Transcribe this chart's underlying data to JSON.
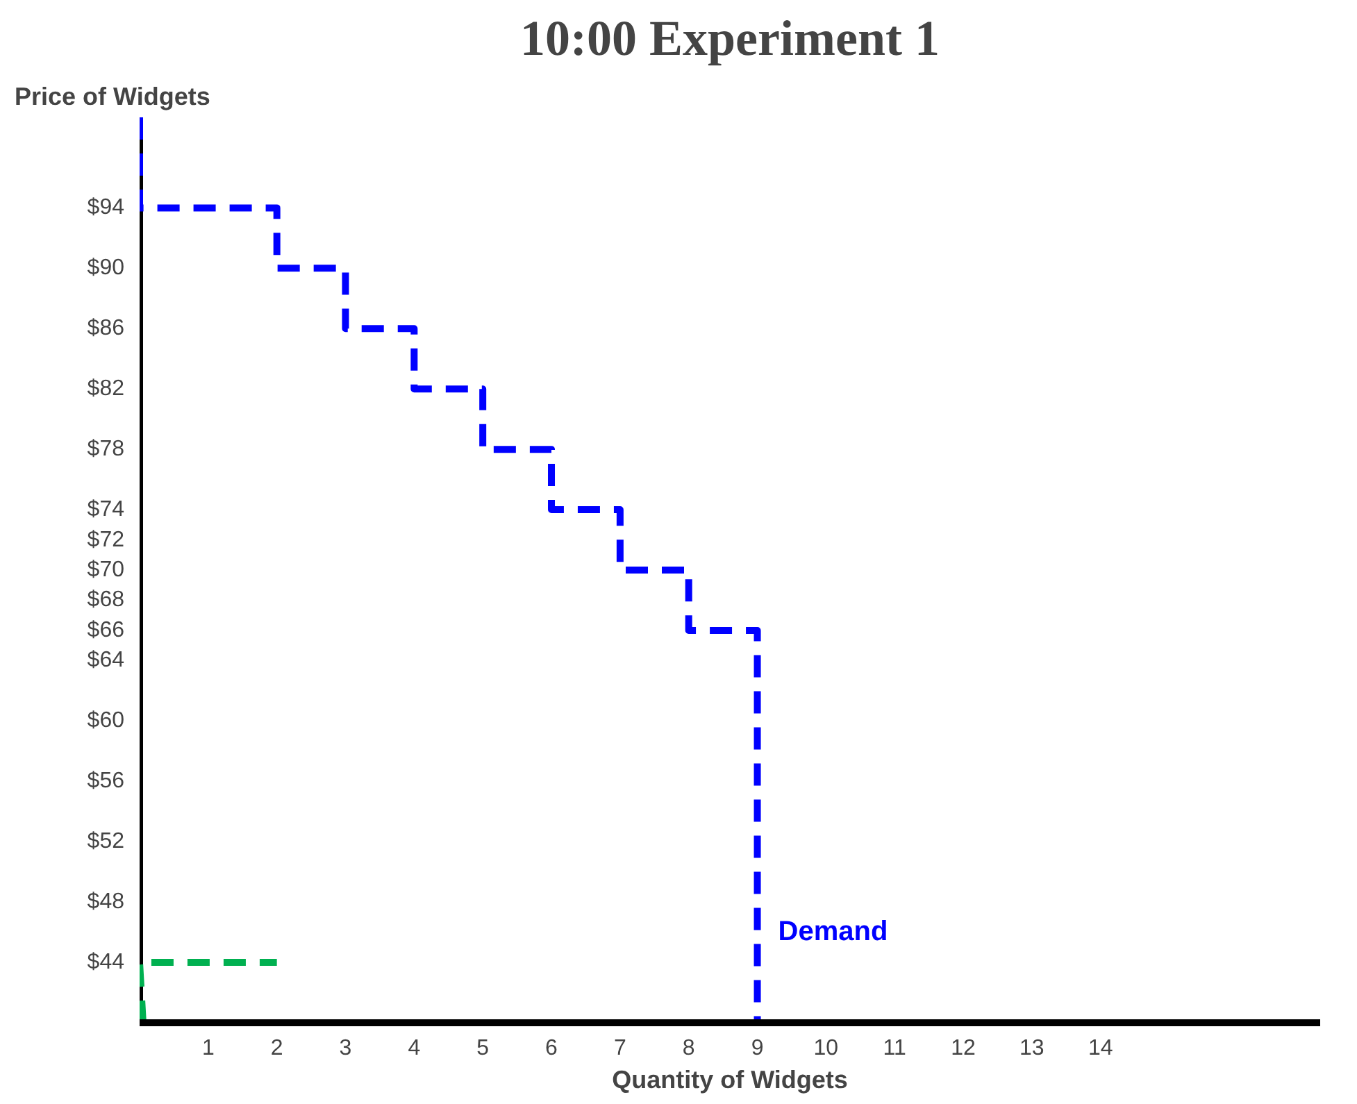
{
  "chart_data": {
    "type": "line",
    "title": "10:00 Experiment 1",
    "xlabel": "Quantity of Widgets",
    "ylabel": "Price of Widgets",
    "series": [
      {
        "name": "Demand",
        "color": "#0000ff",
        "x": [
          0,
          0,
          2,
          2,
          3,
          3,
          4,
          4,
          5,
          5,
          6,
          6,
          7,
          7,
          8,
          8,
          9,
          9
        ],
        "values": [
          100,
          94,
          94,
          90,
          90,
          86,
          86,
          82,
          82,
          78,
          78,
          74,
          74,
          70,
          70,
          66,
          66,
          40
        ]
      },
      {
        "color": "#00b050",
        "x": [
          0.05,
          0,
          2
        ],
        "values": [
          40,
          44,
          44
        ]
      }
    ],
    "xlim": [
      0,
      17.2
    ],
    "ylim": [
      40,
      100
    ],
    "xticks": [
      1,
      2,
      3,
      4,
      5,
      6,
      7,
      8,
      9,
      10,
      11,
      12,
      13,
      14
    ],
    "yticks": [
      {
        "value": 44,
        "label": "$44"
      },
      {
        "value": 48,
        "label": "$48"
      },
      {
        "value": 52,
        "label": "$52"
      },
      {
        "value": 56,
        "label": "$56"
      },
      {
        "value": 60,
        "label": "$60"
      },
      {
        "value": 64,
        "label": "$64"
      },
      {
        "value": 66,
        "label": "$66"
      },
      {
        "value": 68,
        "label": "$68"
      },
      {
        "value": 70,
        "label": "$70"
      },
      {
        "value": 72,
        "label": "$72"
      },
      {
        "value": 74,
        "label": "$74"
      },
      {
        "value": 78,
        "label": "$78"
      },
      {
        "value": 82,
        "label": "$82"
      },
      {
        "value": 86,
        "label": "$86"
      },
      {
        "value": 90,
        "label": "$90"
      },
      {
        "value": 94,
        "label": "$94"
      }
    ],
    "line_style": "dashed",
    "marker": "none",
    "grid": false,
    "legend": false
  }
}
